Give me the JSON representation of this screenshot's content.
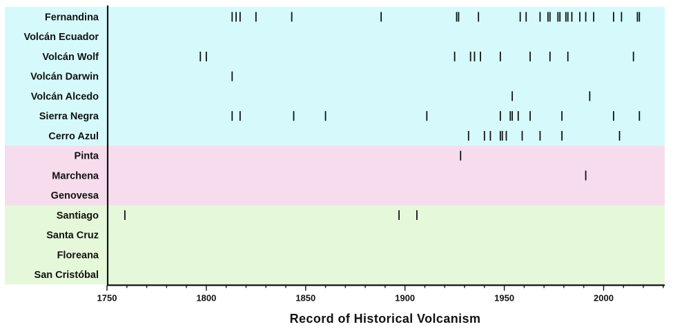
{
  "chart_data": {
    "type": "scatter",
    "title": "",
    "xlabel": "Record of Historical Volcanism",
    "ylabel": "",
    "xlim": [
      1750,
      2030
    ],
    "xticks": [
      1750,
      1800,
      1850,
      1900,
      1950,
      2000
    ],
    "grid": false,
    "legend": "none",
    "groups": [
      {
        "color": "#d6fafb",
        "rows": [
          "Fernandina",
          "Volcán Ecuador",
          "Volcán Wolf",
          "Volcán Darwin",
          "Volcán Alcedo",
          "Sierra Negra",
          "Cerro Azul"
        ]
      },
      {
        "color": "#f6dcec",
        "rows": [
          "Pinta",
          "Marchena",
          "Genovesa"
        ]
      },
      {
        "color": "#e6f8da",
        "rows": [
          "Santiago",
          "Santa Cruz",
          "Floreana",
          "San Cristóbal"
        ]
      }
    ],
    "categories": [
      "Fernandina",
      "Volcán Ecuador",
      "Volcán Wolf",
      "Volcán Darwin",
      "Volcán Alcedo",
      "Sierra Negra",
      "Cerro Azul",
      "Pinta",
      "Marchena",
      "Genovesa",
      "Santiago",
      "Santa Cruz",
      "Floreana",
      "San Cristóbal"
    ],
    "events": [
      [
        1813,
        1815,
        1817,
        1825,
        1843,
        1888,
        1926,
        1927,
        1937,
        1958,
        1961,
        1968,
        1972,
        1973,
        1977,
        1978,
        1981,
        1982,
        1984,
        1988,
        1991,
        1995,
        2005,
        2009,
        2017,
        2018
      ],
      [],
      [
        1797,
        1800,
        1925,
        1933,
        1935,
        1938,
        1948,
        1963,
        1973,
        1982,
        2015
      ],
      [
        1813
      ],
      [
        1954,
        1993
      ],
      [
        1813,
        1817,
        1844,
        1860,
        1911,
        1948,
        1953,
        1954,
        1957,
        1963,
        1979,
        2005,
        2018
      ],
      [
        1932,
        1940,
        1943,
        1948,
        1949,
        1951,
        1959,
        1968,
        1979,
        2008
      ],
      [
        1928
      ],
      [
        1991
      ],
      [],
      [
        1759,
        1897,
        1906
      ],
      [],
      [],
      []
    ]
  }
}
